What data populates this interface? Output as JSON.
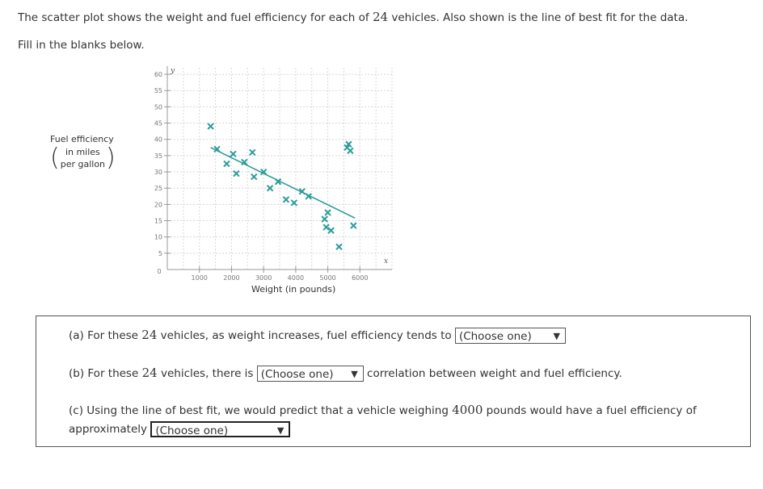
{
  "intro": {
    "before": "The scatter plot shows the weight and fuel efficiency for each of ",
    "count": "24",
    "after": " vehicles. Also shown is the line of best fit for the data."
  },
  "fill_prompt": "Fill in the blanks below.",
  "chart_data": {
    "type": "scatter",
    "xlabel": "Weight (in pounds)",
    "ylabel_main": "Fuel efficiency",
    "ylabel_unit_line1": "in miles",
    "ylabel_unit_line2": "per gallon",
    "x_axis_letter": "x",
    "y_axis_letter": "y",
    "origin_label": "0",
    "xlim": [
      0,
      7000
    ],
    "ylim": [
      0,
      62
    ],
    "xticks": [
      1000,
      2000,
      3000,
      4000,
      5000,
      6000
    ],
    "yticks": [
      5,
      10,
      15,
      20,
      25,
      30,
      35,
      40,
      45,
      50,
      55,
      60
    ],
    "grid": true,
    "points": [
      {
        "x": 1350,
        "y": 44
      },
      {
        "x": 1550,
        "y": 37
      },
      {
        "x": 1850,
        "y": 32.5
      },
      {
        "x": 2050,
        "y": 35.5
      },
      {
        "x": 2150,
        "y": 29.5
      },
      {
        "x": 2400,
        "y": 33
      },
      {
        "x": 2650,
        "y": 36
      },
      {
        "x": 2700,
        "y": 28.5
      },
      {
        "x": 3000,
        "y": 30
      },
      {
        "x": 3200,
        "y": 25
      },
      {
        "x": 3450,
        "y": 27
      },
      {
        "x": 3700,
        "y": 21.5
      },
      {
        "x": 3950,
        "y": 20.5
      },
      {
        "x": 4200,
        "y": 24
      },
      {
        "x": 4400,
        "y": 22.5
      },
      {
        "x": 4900,
        "y": 15.5
      },
      {
        "x": 4950,
        "y": 13
      },
      {
        "x": 5000,
        "y": 17.5
      },
      {
        "x": 5100,
        "y": 12
      },
      {
        "x": 5350,
        "y": 7
      },
      {
        "x": 5600,
        "y": 37.5
      },
      {
        "x": 5650,
        "y": 38.5
      },
      {
        "x": 5700,
        "y": 36.5
      },
      {
        "x": 5800,
        "y": 13.5
      }
    ],
    "best_fit": {
      "x1": 1350,
      "y1": 37.5,
      "x2": 5850,
      "y2": 15.8
    }
  },
  "questions": {
    "a": {
      "prefix": "(a) For these ",
      "count": "24",
      "middle": " vehicles, as weight increases, fuel efficiency tends to ",
      "select": "(Choose one)"
    },
    "b": {
      "prefix": "(b) For these ",
      "count": "24",
      "middle": " vehicles, there is ",
      "select": "(Choose one)",
      "suffix": " correlation between weight and fuel efficiency."
    },
    "c": {
      "prefix": "(c) Using the line of best fit, we would predict that a vehicle weighing ",
      "weight": "4000",
      "middle": " pounds would have a fuel efficiency of",
      "line2": "approximately ",
      "select": "(Choose one)"
    }
  }
}
